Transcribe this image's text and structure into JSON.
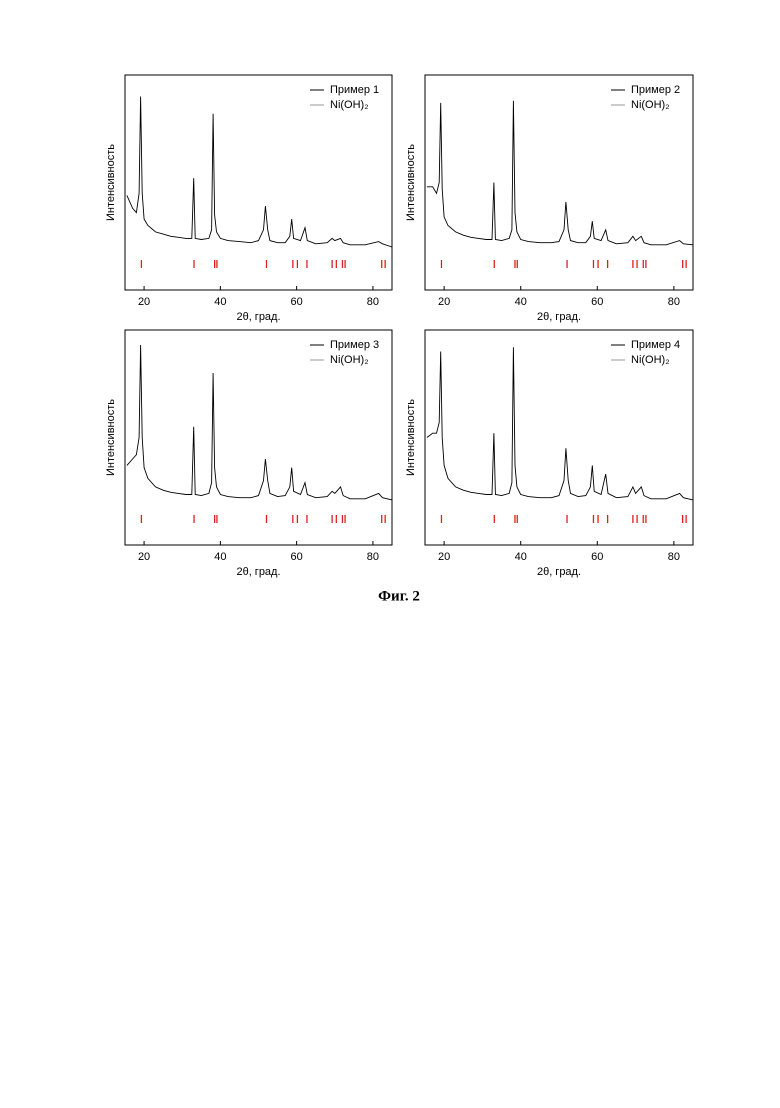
{
  "chart_data": [
    {
      "type": "line",
      "xlabel": "2θ, град.",
      "ylabel": "Интенсивность",
      "xlim": [
        15,
        85
      ],
      "ylim": [
        0,
        100
      ],
      "xticks": [
        20,
        40,
        60,
        80
      ],
      "series": [
        {
          "name": "Пример 1",
          "color": "#000000",
          "x": [
            15.5,
            17,
            18,
            18.7,
            19.1,
            19.5,
            20,
            21,
            23,
            25,
            27,
            29,
            31,
            32.5,
            33,
            33.4,
            35,
            37,
            37.7,
            38.1,
            38.5,
            39,
            40,
            42,
            45,
            48,
            50,
            51.3,
            51.8,
            52.4,
            53,
            55,
            57,
            58.2,
            58.7,
            59.2,
            61,
            62.2,
            62.8,
            65,
            68,
            69.3,
            70,
            71.5,
            72.2,
            74,
            78,
            81.5,
            82.5,
            85
          ],
          "values": [
            44,
            38,
            36,
            45,
            90,
            45,
            33,
            30,
            27,
            26,
            25,
            24.5,
            24,
            24,
            52,
            24,
            23.5,
            24,
            28,
            82,
            35,
            27,
            24,
            23,
            22.5,
            22,
            23,
            28,
            39,
            28,
            23,
            22,
            22,
            25,
            33,
            24,
            23,
            29,
            23,
            21.5,
            22,
            24,
            23,
            24,
            22,
            21,
            21,
            22.5,
            21.5,
            20
          ]
        },
        {
          "name": "Ni(OH)₂",
          "color": "#e02020",
          "x": [
            19.3,
            33.1,
            38.5,
            39.1,
            52.1,
            59.0,
            60.2,
            62.7,
            69.3,
            70.4,
            72.0,
            72.7,
            82.3,
            83.2
          ]
        }
      ]
    },
    {
      "type": "line",
      "xlabel": "2θ, град.",
      "ylabel": "Интенсивность",
      "xlim": [
        15,
        85
      ],
      "ylim": [
        0,
        100
      ],
      "xticks": [
        20,
        40,
        60,
        80
      ],
      "series": [
        {
          "name": "Пример 2",
          "color": "#000000",
          "x": [
            15.5,
            17,
            18,
            18.7,
            19.1,
            19.5,
            20,
            21,
            23,
            25,
            27,
            29,
            31,
            32.5,
            33,
            33.4,
            35,
            37,
            37.7,
            38.1,
            38.5,
            39,
            40,
            42,
            45,
            48,
            50,
            51.3,
            51.8,
            52.4,
            53,
            55,
            57,
            58.2,
            58.7,
            59.2,
            61,
            62.2,
            62.8,
            65,
            68,
            69.3,
            70,
            71.5,
            72.2,
            74,
            78,
            81.5,
            82.5,
            85
          ],
          "values": [
            48,
            48,
            45,
            50,
            87,
            47,
            34,
            30,
            27,
            25.5,
            24.5,
            24,
            23.5,
            23.5,
            50,
            23.5,
            23,
            24,
            28,
            88,
            36,
            27,
            23.5,
            22.5,
            22,
            22,
            22.5,
            28,
            41,
            28,
            23,
            22,
            22,
            25,
            32,
            24,
            23,
            28,
            23,
            21.5,
            22,
            25,
            23,
            25,
            22,
            21,
            21,
            23,
            21.5,
            21
          ]
        },
        {
          "name": "Ni(OH)₂",
          "color": "#e02020",
          "x": [
            19.3,
            33.1,
            38.5,
            39.1,
            52.1,
            59.0,
            60.2,
            62.7,
            69.3,
            70.4,
            72.0,
            72.7,
            82.3,
            83.2
          ]
        }
      ]
    },
    {
      "type": "line",
      "xlabel": "2θ, град.",
      "ylabel": "Интенсивность",
      "xlim": [
        15,
        85
      ],
      "ylim": [
        0,
        100
      ],
      "xticks": [
        20,
        40,
        60,
        80
      ],
      "series": [
        {
          "name": "Пример 3",
          "color": "#000000",
          "x": [
            15.5,
            17,
            18,
            18.7,
            19.1,
            19.5,
            20,
            21,
            23,
            25,
            27,
            29,
            31,
            32.5,
            33,
            33.4,
            35,
            37,
            37.7,
            38.1,
            38.5,
            39,
            40,
            42,
            45,
            48,
            50,
            51.3,
            51.8,
            52.4,
            53,
            55,
            57,
            58.2,
            58.7,
            59.2,
            61,
            62.2,
            62.8,
            65,
            68,
            69.3,
            70,
            71.5,
            72.2,
            74,
            78,
            81.5,
            82.5,
            85
          ],
          "values": [
            37,
            40,
            42,
            50,
            93,
            50,
            36,
            31,
            27,
            25.5,
            24.5,
            24,
            23.5,
            23.5,
            55,
            23.5,
            23,
            24,
            29,
            80,
            36,
            27,
            23.5,
            22.5,
            22,
            22,
            23,
            30,
            40,
            30,
            24,
            22.5,
            23,
            27,
            36,
            25,
            23.5,
            29,
            23.5,
            22,
            22.5,
            25,
            24,
            27,
            23,
            21.5,
            21.5,
            24,
            22,
            21
          ]
        },
        {
          "name": "Ni(OH)₂",
          "color": "#e02020",
          "x": [
            19.3,
            33.1,
            38.5,
            39.1,
            52.1,
            59.0,
            60.2,
            62.7,
            69.3,
            70.4,
            72.0,
            72.7,
            82.3,
            83.2
          ]
        }
      ]
    },
    {
      "type": "line",
      "xlabel": "2θ, град.",
      "ylabel": "Интенсивность",
      "xlim": [
        15,
        85
      ],
      "ylim": [
        0,
        100
      ],
      "xticks": [
        20,
        40,
        60,
        80
      ],
      "series": [
        {
          "name": "Пример 4",
          "color": "#000000",
          "x": [
            15.5,
            17,
            18,
            18.7,
            19.1,
            19.5,
            20,
            21,
            23,
            25,
            27,
            29,
            31,
            32.5,
            33,
            33.4,
            35,
            37,
            37.7,
            38.1,
            38.5,
            39,
            40,
            42,
            45,
            48,
            50,
            51.3,
            51.8,
            52.4,
            53,
            55,
            57,
            58.2,
            58.7,
            59.2,
            61,
            62.2,
            62.8,
            65,
            68,
            69.3,
            70,
            71.5,
            72.2,
            74,
            78,
            81.5,
            82.5,
            85
          ],
          "values": [
            50,
            52,
            52,
            57,
            90,
            50,
            37,
            31,
            27,
            25.5,
            24.5,
            24,
            23.5,
            23.5,
            52,
            23.5,
            23,
            24,
            29,
            92,
            37,
            27,
            23.5,
            22.5,
            22,
            22,
            23,
            30,
            45,
            30,
            24,
            22.5,
            23,
            27,
            37,
            25,
            23.5,
            33,
            24,
            22,
            22.5,
            27,
            24,
            27,
            23,
            21.5,
            21.5,
            24,
            22,
            21
          ]
        },
        {
          "name": "Ni(OH)₂",
          "color": "#e02020",
          "x": [
            19.3,
            33.1,
            38.5,
            39.1,
            52.1,
            59.0,
            60.2,
            62.7,
            69.3,
            70.4,
            72.0,
            72.7,
            82.3,
            83.2
          ]
        }
      ]
    }
  ],
  "figure_caption": "Фиг. 2"
}
